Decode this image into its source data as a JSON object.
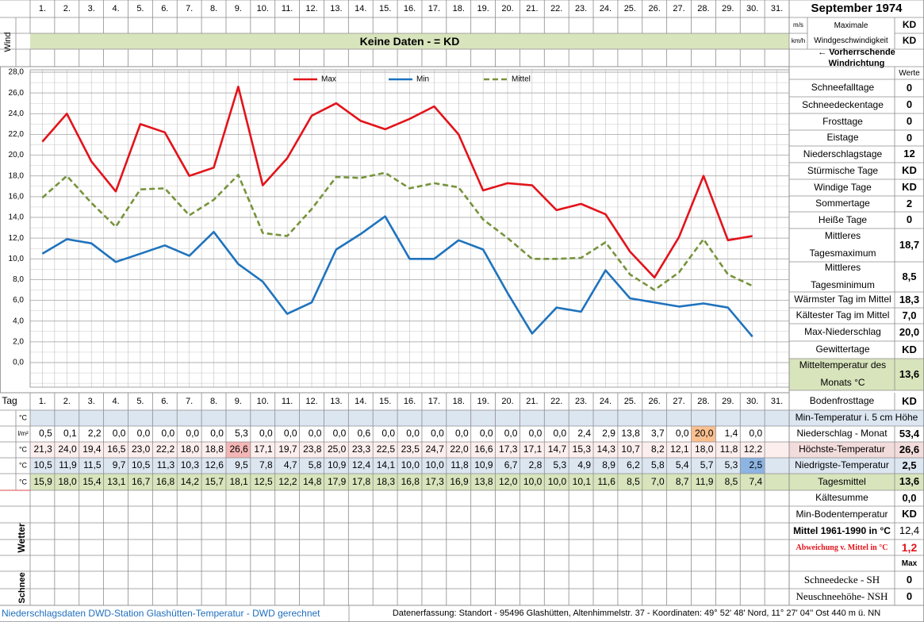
{
  "header": {
    "month": "September 1974"
  },
  "wind": {
    "label": "Wind",
    "note": "Keine Daten -  = KD",
    "units": [
      "m/s",
      "km/h"
    ],
    "max_label": "Maximale Windgeschwindigkeit",
    "values": [
      "KD",
      "KD"
    ],
    "direction": "← Vorherrschende Windrichtung"
  },
  "chart_data": {
    "type": "line",
    "categories": [
      "1.",
      "2.",
      "3.",
      "4.",
      "5.",
      "6.",
      "7.",
      "8.",
      "9.",
      "10.",
      "11.",
      "12.",
      "13.",
      "14.",
      "15.",
      "16.",
      "17.",
      "18.",
      "19.",
      "20.",
      "21.",
      "22.",
      "23.",
      "24.",
      "25.",
      "26.",
      "27.",
      "28.",
      "29.",
      "30.",
      "31."
    ],
    "ylim": [
      0,
      28
    ],
    "yticks": [
      {
        "value": 0,
        "label": "0,0"
      },
      {
        "value": 2,
        "label": "2,0"
      },
      {
        "value": 4,
        "label": "4,0"
      },
      {
        "value": 6,
        "label": "6,0"
      },
      {
        "value": 8,
        "label": "8,0"
      },
      {
        "value": 10,
        "label": "10,0"
      },
      {
        "value": 12,
        "label": "12,0"
      },
      {
        "value": 14,
        "label": "14,0"
      },
      {
        "value": 16,
        "label": "16,0"
      },
      {
        "value": 18,
        "label": "18,0"
      },
      {
        "value": 20,
        "label": "20,0"
      },
      {
        "value": 22,
        "label": "22,0"
      },
      {
        "value": 24,
        "label": "24,0"
      },
      {
        "value": 26,
        "label": "26,0"
      },
      {
        "value": 28,
        "label": "28,0"
      }
    ],
    "grid": true,
    "legend": "top",
    "series": [
      {
        "name": "Max",
        "color": "#e3131b",
        "dash": "solid",
        "values": [
          21.3,
          24.0,
          19.4,
          16.5,
          23.0,
          22.2,
          18.0,
          18.8,
          26.6,
          17.1,
          19.7,
          23.8,
          25.0,
          23.3,
          22.5,
          23.5,
          24.7,
          22.0,
          16.6,
          17.3,
          17.1,
          14.7,
          15.3,
          14.3,
          10.7,
          8.2,
          12.1,
          18.0,
          11.8,
          12.2,
          null
        ],
        "value_labels": [
          "21,3",
          "24,0",
          "19,4",
          "16,5",
          "23,0",
          "22,2",
          "18,0",
          "18,8",
          "26,6",
          "17,1",
          "19,7",
          "23,8",
          "25,0",
          "23,3",
          "22,5",
          "23,5",
          "24,7",
          "22,0",
          "16,6",
          "17,3",
          "17,1",
          "14,7",
          "15,3",
          "14,3",
          "10,7",
          "8,2",
          "12,1",
          "18,0",
          "11,8",
          "12,2",
          null
        ]
      },
      {
        "name": "Min",
        "color": "#1f73bd",
        "dash": "solid",
        "values": [
          10.5,
          11.9,
          11.5,
          9.7,
          10.5,
          11.3,
          10.3,
          12.6,
          9.5,
          7.8,
          4.7,
          5.8,
          10.9,
          12.4,
          14.1,
          10.0,
          10.0,
          11.8,
          10.9,
          6.7,
          2.8,
          5.3,
          4.9,
          8.9,
          6.2,
          5.8,
          5.4,
          5.7,
          5.3,
          2.5,
          null
        ],
        "value_labels": [
          "10,5",
          "11,9",
          "11,5",
          "9,7",
          "10,5",
          "11,3",
          "10,3",
          "12,6",
          "9,5",
          "7,8",
          "4,7",
          "5,8",
          "10,9",
          "12,4",
          "14,1",
          "10,0",
          "10,0",
          "11,8",
          "10,9",
          "6,7",
          "2,8",
          "5,3",
          "4,9",
          "8,9",
          "6,2",
          "5,8",
          "5,4",
          "5,7",
          "5,3",
          "2,5",
          null
        ]
      },
      {
        "name": "Mittel",
        "color": "#77933c",
        "dash": "dashed",
        "values": [
          15.9,
          18.0,
          15.4,
          13.1,
          16.7,
          16.8,
          14.2,
          15.7,
          18.1,
          12.5,
          12.2,
          14.8,
          17.9,
          17.8,
          18.3,
          16.8,
          17.3,
          16.9,
          13.8,
          12.0,
          10.0,
          10.0,
          10.1,
          11.6,
          8.5,
          7.0,
          8.7,
          11.9,
          8.5,
          7.4,
          null
        ],
        "value_labels": [
          "15,9",
          "18,0",
          "15,4",
          "13,1",
          "16,7",
          "16,8",
          "14,2",
          "15,7",
          "18,1",
          "12,5",
          "12,2",
          "14,8",
          "17,9",
          "17,8",
          "18,3",
          "16,8",
          "17,3",
          "16,9",
          "13,8",
          "12,0",
          "10,0",
          "10,0",
          "10,1",
          "11,6",
          "8,5",
          "7,0",
          "8,7",
          "11,9",
          "8,5",
          "7,4",
          null
        ]
      }
    ]
  },
  "table": {
    "day_label": "Tag",
    "unit": "°C",
    "precip_unit": "l/m²",
    "precipitation": {
      "values": [
        0.5,
        0.1,
        2.2,
        0,
        0,
        0,
        0,
        0,
        5.3,
        0,
        0,
        0,
        0,
        0.6,
        0,
        0,
        0,
        0,
        0,
        0,
        0,
        0,
        2.4,
        2.9,
        13.8,
        3.7,
        0,
        20.0,
        1.4,
        0,
        null
      ],
      "value_labels": [
        "0,5",
        "0,1",
        "2,2",
        "0,0",
        "0,0",
        "0,0",
        "0,0",
        "0,0",
        "5,3",
        "0,0",
        "0,0",
        "0,0",
        "0,0",
        "0,6",
        "0,0",
        "0,0",
        "0,0",
        "0,0",
        "0,0",
        "0,0",
        "0,0",
        "0,0",
        "2,4",
        "2,9",
        "13,8",
        "3,7",
        "0,0",
        "20,0",
        "1,4",
        "0,0",
        null
      ]
    },
    "weather_label": "Wetter",
    "snow_label": "Schnee"
  },
  "stats": {
    "header": "Werte",
    "rows": [
      {
        "label": "Schneefalltage",
        "value": "0"
      },
      {
        "label": "Schneedeckentage",
        "value": "0"
      },
      {
        "label": "Frosttage",
        "value": "0"
      },
      {
        "label": "Eistage",
        "value": "0"
      },
      {
        "label": "Niederschlagstage",
        "value": "12"
      },
      {
        "label": "Stürmische Tage",
        "value": "KD"
      },
      {
        "label": "Windige Tage",
        "value": "KD"
      },
      {
        "label": "Sommertage",
        "value": "2"
      },
      {
        "label": "Heiße Tage",
        "value": "0"
      },
      {
        "label": "Mittleres Tagesmaximum",
        "value": "18,7"
      },
      {
        "label": "Mittleres Tagesminimum",
        "value": "8,5"
      },
      {
        "label": "Wärmster Tag im Mittel",
        "value": "18,3"
      },
      {
        "label": "Kältester Tag im Mittel",
        "value": "7,0"
      },
      {
        "label": "Max-Niederschlag",
        "value": "20,0"
      },
      {
        "label": "Gewittertage",
        "value": "KD"
      },
      {
        "label": "Mitteltemperatur des Monats °C",
        "value": "13,6"
      }
    ]
  },
  "summary": [
    {
      "label": "Bodenfrosttage",
      "value": "KD"
    },
    {
      "label": "Min-Temperatur i. 5 cm Höhe"
    },
    {
      "label": "Niederschlag - Monat",
      "value": "53,4"
    },
    {
      "label": "Höchste-Temperatur",
      "value": "26,6"
    },
    {
      "label": "Niedrigste-Temperatur",
      "value": "2,5"
    },
    {
      "label": "Tagesmittel",
      "value": "13,6"
    },
    {
      "label": "Kältesumme",
      "value": "0,0"
    },
    {
      "label": "Min-Bodentemperatur",
      "value": "KD"
    },
    {
      "label": "Mittel 1961-1990 in °C",
      "value": "12,4"
    },
    {
      "label": "Abweichung v. Mittel in °C",
      "value": "1,2"
    },
    {
      "value": "Max"
    },
    {
      "label": "Schneedecke -   SH",
      "value": "0"
    },
    {
      "label": "Neuschneehöhe- NSH",
      "value": "0"
    }
  ],
  "footer": {
    "left": "Niederschlagsdaten DWD-Station Glashütten-Temperatur -  DWD gerechnet",
    "right": "Datenerfassung: Standort - 95496 Glashütten, Altenhimmelstr. 37 - Koordinaten: 49° 52' 48' Nord,  11° 27' 04'' Ost  440 m ü. NN"
  }
}
